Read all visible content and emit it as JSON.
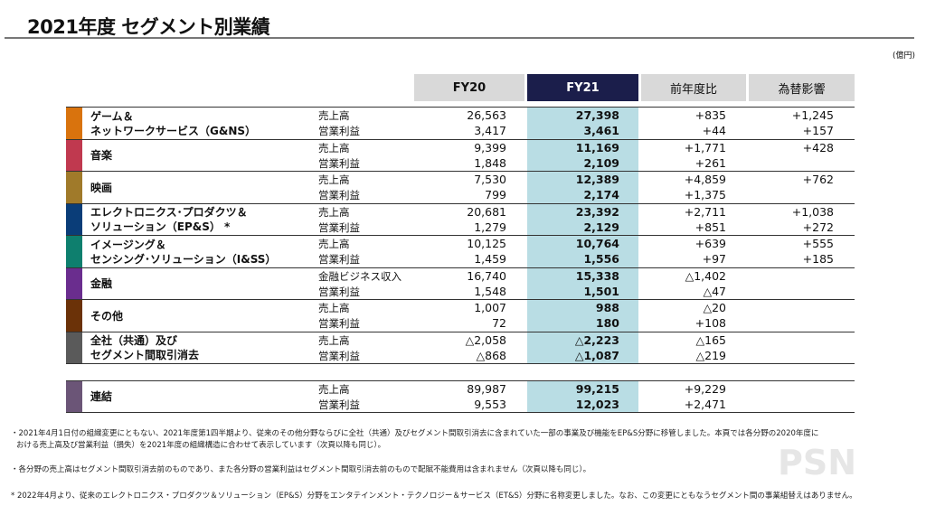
{
  "title": "2021年度 セグメント別業績",
  "unit": "(億円)",
  "headers": {
    "fy20": "FY20",
    "fy21": "FY21",
    "yoy": "前年度比",
    "fx": "為替影響"
  },
  "segments": [
    {
      "name": [
        "ゲーム＆",
        "ネットワークサービス（G&NS）"
      ],
      "color": "#d9730d",
      "rows": [
        {
          "metric": "売上高",
          "fy20": "26,563",
          "fy21": "27,398",
          "yoy": "+835",
          "fx": "+1,245"
        },
        {
          "metric": "営業利益",
          "fy20": "3,417",
          "fy21": "3,461",
          "yoy": "+44",
          "fx": "+157"
        }
      ]
    },
    {
      "name": [
        "音楽"
      ],
      "color": "#c0394f",
      "rows": [
        {
          "metric": "売上高",
          "fy20": "9,399",
          "fy21": "11,169",
          "yoy": "+1,771",
          "fx": "+428"
        },
        {
          "metric": "営業利益",
          "fy20": "1,848",
          "fy21": "2,109",
          "yoy": "+261",
          "fx": ""
        }
      ]
    },
    {
      "name": [
        "映画"
      ],
      "color": "#a07a2a",
      "rows": [
        {
          "metric": "売上高",
          "fy20": "7,530",
          "fy21": "12,389",
          "yoy": "+4,859",
          "fx": "+762"
        },
        {
          "metric": "営業利益",
          "fy20": "799",
          "fy21": "2,174",
          "yoy": "+1,375",
          "fx": ""
        }
      ]
    },
    {
      "name": [
        "エレクトロニクス･プロダクツ＆",
        "ソリューション（EP&S） *"
      ],
      "color": "#0a3d78",
      "rows": [
        {
          "metric": "売上高",
          "fy20": "20,681",
          "fy21": "23,392",
          "yoy": "+2,711",
          "fx": "+1,038"
        },
        {
          "metric": "営業利益",
          "fy20": "1,279",
          "fy21": "2,129",
          "yoy": "+851",
          "fx": "+272"
        }
      ]
    },
    {
      "name": [
        "イメージング＆",
        "センシング･ソリューション（I&SS）"
      ],
      "color": "#0e7f6e",
      "rows": [
        {
          "metric": "売上高",
          "fy20": "10,125",
          "fy21": "10,764",
          "yoy": "+639",
          "fx": "+555"
        },
        {
          "metric": "営業利益",
          "fy20": "1,459",
          "fy21": "1,556",
          "yoy": "+97",
          "fx": "+185"
        }
      ]
    },
    {
      "name": [
        "金融"
      ],
      "color": "#6a2d8e",
      "rows": [
        {
          "metric": "金融ビジネス収入",
          "fy20": "16,740",
          "fy21": "15,338",
          "yoy": "△1,402",
          "fx": ""
        },
        {
          "metric": "営業利益",
          "fy20": "1,548",
          "fy21": "1,501",
          "yoy": "△47",
          "fx": ""
        }
      ]
    },
    {
      "name": [
        "その他"
      ],
      "color": "#6b3208",
      "rows": [
        {
          "metric": "売上高",
          "fy20": "1,007",
          "fy21": "988",
          "yoy": "△20",
          "fx": ""
        },
        {
          "metric": "営業利益",
          "fy20": "72",
          "fy21": "180",
          "yoy": "+108",
          "fx": ""
        }
      ]
    },
    {
      "name": [
        "全社（共通）及び",
        "セグメント間取引消去"
      ],
      "color": "#5a5a5a",
      "rows": [
        {
          "metric": "売上高",
          "fy20": "△2,058",
          "fy21": "△2,223",
          "yoy": "△165",
          "fx": ""
        },
        {
          "metric": "営業利益",
          "fy20": "△868",
          "fy21": "△1,087",
          "yoy": "△219",
          "fx": ""
        }
      ]
    }
  ],
  "consolidated": {
    "name": [
      "連結"
    ],
    "color": "#6b5577",
    "rows": [
      {
        "metric": "売上高",
        "fy20": "89,987",
        "fy21": "99,215",
        "yoy": "+9,229",
        "fx": ""
      },
      {
        "metric": "営業利益",
        "fy20": "9,553",
        "fy21": "12,023",
        "yoy": "+2,471",
        "fx": ""
      }
    ]
  },
  "notes": [
    "・2021年4月1日付の組織変更にともない、2021年度第1四半期より、従来のその他分野ならびに全社（共通）及びセグメント間取引消去に含まれていた一部の事業及び機能をEP&S分野に移管しました。本頁では各分野の2020年度に",
    "おける売上高及び営業利益（損失）を2021年度の組織構造に合わせて表示しています（次頁以降も同じ）。",
    "・各分野の売上高はセグメント間取引消去前のものであり、また各分野の営業利益はセグメント間取引消去前のもので配賦不能費用は含まれません（次頁以降も同じ）。",
    "* 2022年4月より、従来のエレクトロニクス・プロダクツ＆ソリューション（EP&S）分野をエンタテインメント・テクノロジー＆サービス（ET&S）分野に名称変更しました。なお、この変更にともなうセグメント間の事業組替えはありません。"
  ],
  "watermark": "PSN"
}
